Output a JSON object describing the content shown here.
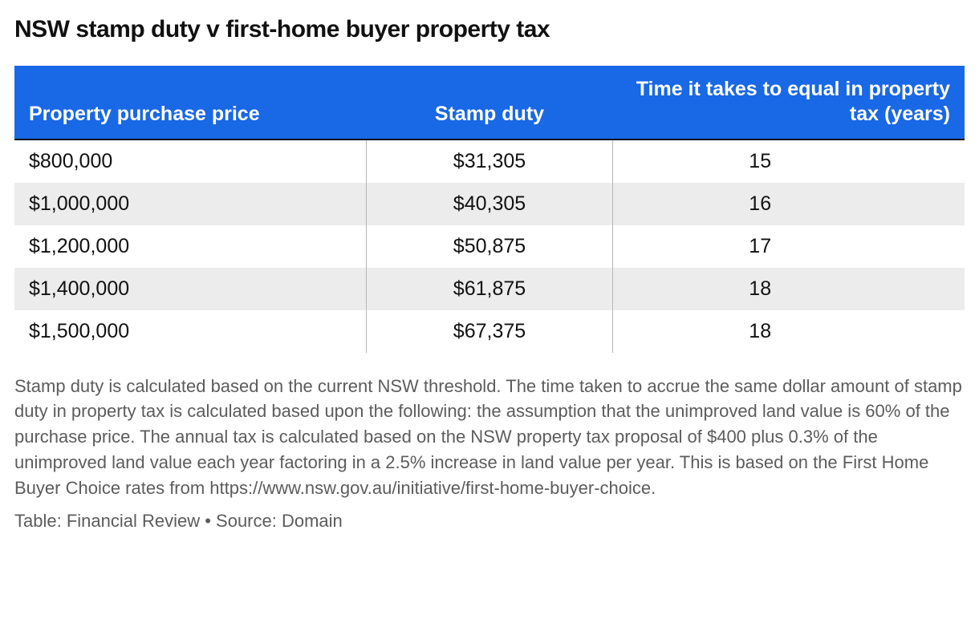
{
  "title": "NSW stamp duty v first-home buyer property tax",
  "table": {
    "type": "table",
    "header_bg": "#1968e5",
    "header_text_color": "#ffffff",
    "row_alt_bg": "#ececec",
    "row_bg": "#ffffff",
    "border_top_color": "#111111",
    "col_divider_color": "#b6b6b6",
    "columns": [
      {
        "label": "Property purchase price",
        "align": "left"
      },
      {
        "label": "Stamp duty",
        "align": "center"
      },
      {
        "label": "Time it takes to equal in property tax (years)",
        "align": "right"
      }
    ],
    "rows": [
      {
        "price": "$800,000",
        "duty": "$31,305",
        "years": "15"
      },
      {
        "price": "$1,000,000",
        "duty": "$40,305",
        "years": "16"
      },
      {
        "price": "$1,200,000",
        "duty": "$50,875",
        "years": "17"
      },
      {
        "price": "$1,400,000",
        "duty": "$61,875",
        "years": "18"
      },
      {
        "price": "$1,500,000",
        "duty": "$67,375",
        "years": "18"
      }
    ]
  },
  "footnote": "Stamp duty is calculated based on the current NSW threshold. The time taken to accrue the same dollar amount of stamp duty in property tax is calculated based upon the following: the assumption that the unimproved land value is 60% of the purchase price. The annual tax is calculated based on the NSW property tax proposal of $400 plus 0.3% of the unimproved land value each year factoring in a 2.5% increase in land value per year. This is based on the First Home Buyer Choice rates from https://www.nsw.gov.au/initiative/first-home-buyer-choice.",
  "attribution": "Table: Financial Review • Source: Domain",
  "style": {
    "title_fontsize": 30,
    "header_fontsize": 25,
    "cell_fontsize": 25,
    "footnote_fontsize": 22,
    "footnote_color": "#5c5c5c",
    "body_text_color": "#111111",
    "background_color": "#ffffff"
  }
}
